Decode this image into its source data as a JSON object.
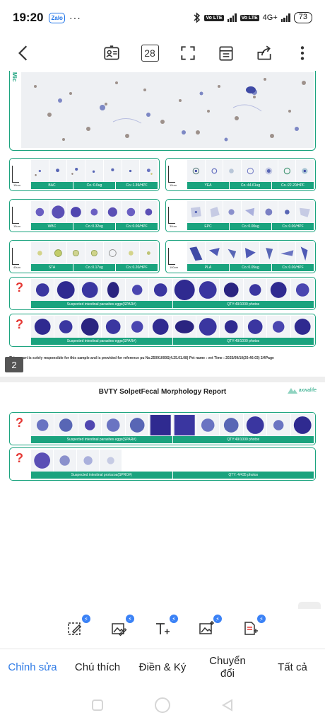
{
  "status_bar": {
    "time": "19:20",
    "app_badge": "Zalo",
    "more": "···",
    "network": "4G+",
    "battery": "73"
  },
  "toolbar": {
    "page_count": "28"
  },
  "document": {
    "page1": {
      "side_label": "Mic",
      "panels": [
        {
          "left": "BAC",
          "mid": "Co.:0.0ug",
          "right": "Co.:1.39/HPF"
        },
        {
          "left": "YEA",
          "mid": "Co.:44.61ug",
          "right": "Co.:22.20/HPF"
        },
        {
          "left": "WBC",
          "mid": "Co.:0.32ug",
          "right": "Co.:0.06/HPF"
        },
        {
          "left": "EPC",
          "mid": "Co.:0.00ug",
          "right": "Co.:0.00/HPF"
        },
        {
          "left": "STA",
          "mid": "Co.:0.17ug",
          "right": "Co.:0.20/HPF"
        },
        {
          "left": "PLA",
          "mid": "Co.:0.05ug",
          "right": "Co.:0.00/HPF"
        }
      ],
      "wide_panels": [
        {
          "left": "Suspected intestinal parasites eggs(SPAR#)",
          "right": "QTY:49/1000 photos"
        },
        {
          "left": "Suspected intestinal parasites eggs(SPAR#)",
          "right": "QTY:49/1000 photos"
        }
      ],
      "footer": "This report is solely responsible for this sample and is provided for reference pu No.25091000S(4.25.01.08) Pet name : vet Time : 2025/09/10(20:46:03) 2/4Page",
      "page_number": "2"
    },
    "page2": {
      "title": "BVTY SolpetFecal Morphology Report",
      "brand": "axwalife",
      "wide_panels": [
        {
          "left": "Suspected intestinal parasites eggs(SPAR#)",
          "right": "QTY:49/1000 photos"
        },
        {
          "left": "Suspected intestinal protozoa(SPRO#)",
          "right": "QTY: 4/435 photos"
        }
      ]
    }
  },
  "bottom_tools": [
    "edit-text-tool",
    "edit-image-tool",
    "add-text-tool",
    "add-image-tool",
    "convert-doc-tool"
  ],
  "tabs": {
    "edit": "Chỉnh sửa",
    "annotate": "Chú thích",
    "fill_sign": "Điền & Ký",
    "convert_line1": "Chuyển",
    "convert_line2": "đổi",
    "all": "Tất cả"
  },
  "colors": {
    "accent": "#2f7be6",
    "report_green": "#1aa37e",
    "tool_badge": "#3b82f6"
  }
}
